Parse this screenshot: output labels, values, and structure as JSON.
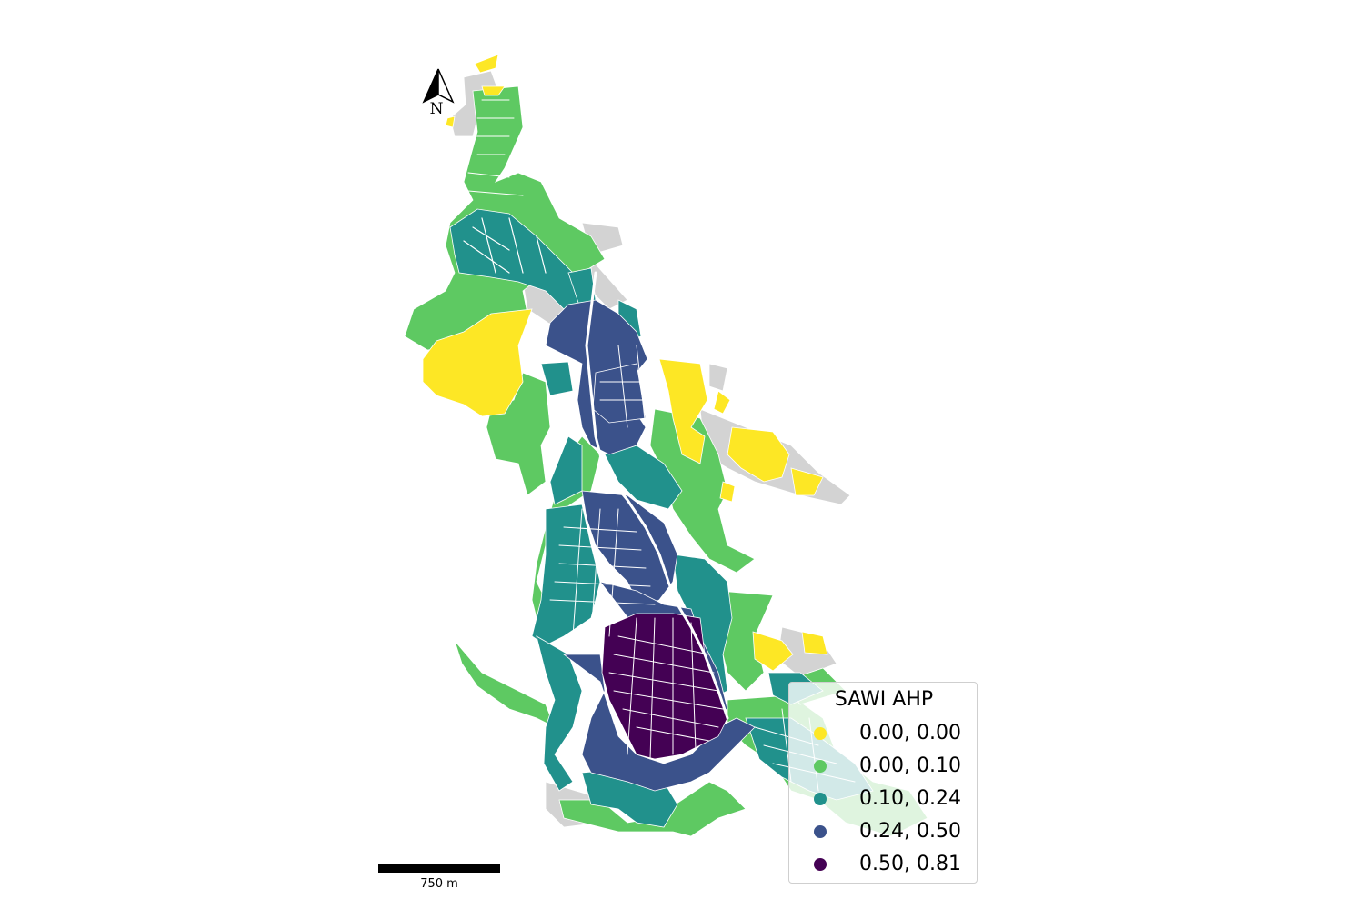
{
  "map": {
    "north_label": "N",
    "scale_label": "750 m",
    "legend": {
      "title": "SAWI AHP",
      "classes": [
        {
          "label": "0.00, 0.00",
          "color": "#fde725"
        },
        {
          "label": "0.00, 0.10",
          "color": "#5ec962"
        },
        {
          "label": "0.10, 0.24",
          "color": "#21918c"
        },
        {
          "label": "0.24, 0.50",
          "color": "#3b528b"
        },
        {
          "label": "0.50, 0.81",
          "color": "#440154"
        }
      ]
    },
    "no_data_color": "#d3d3d3"
  }
}
